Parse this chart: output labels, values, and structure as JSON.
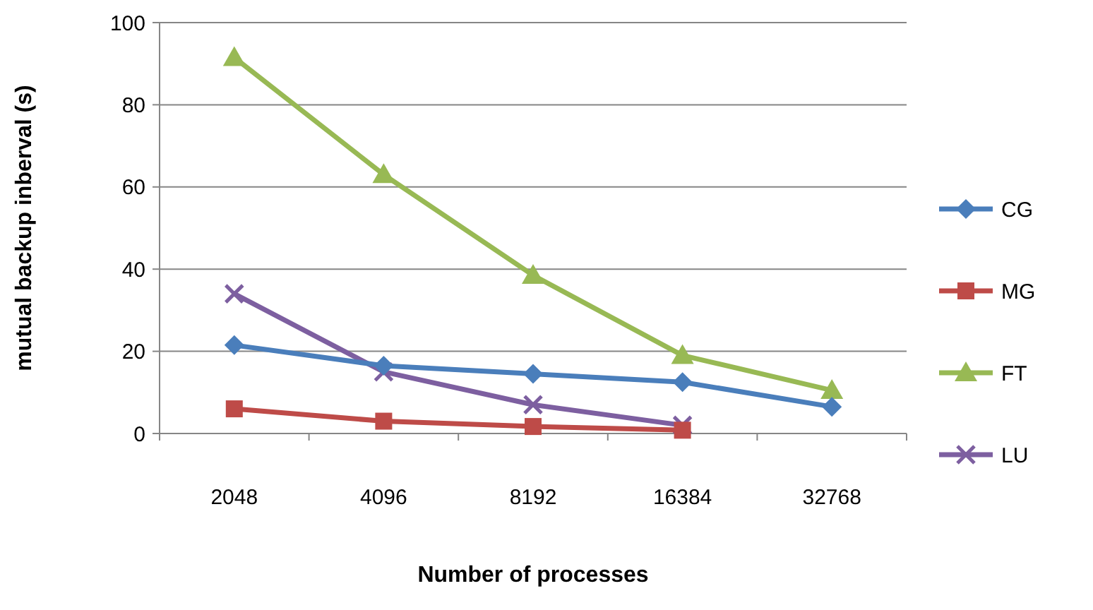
{
  "chart_data": {
    "type": "line",
    "xlabel": "Number of processes",
    "ylabel": "mutual backup inberval (s)",
    "categories": [
      "2048",
      "4096",
      "8192",
      "16384",
      "32768"
    ],
    "ylim": [
      0,
      100
    ],
    "yticks": [
      0,
      20,
      40,
      60,
      80,
      100
    ],
    "grid": "y",
    "legend": "right",
    "series": [
      {
        "name": "CG",
        "color": "#4a7ebb",
        "marker": "diamond",
        "values": [
          21.5,
          16.5,
          14.5,
          12.5,
          6.5
        ]
      },
      {
        "name": "MG",
        "color": "#be4b48",
        "marker": "square",
        "values": [
          6,
          3,
          1.7,
          0.8,
          null
        ]
      },
      {
        "name": "FT",
        "color": "#98b954",
        "marker": "triangle",
        "values": [
          91.5,
          63,
          38.5,
          19,
          10.5
        ]
      },
      {
        "name": "LU",
        "color": "#7d5fa0",
        "marker": "cross",
        "values": [
          34,
          15,
          7,
          2,
          null
        ]
      }
    ]
  }
}
